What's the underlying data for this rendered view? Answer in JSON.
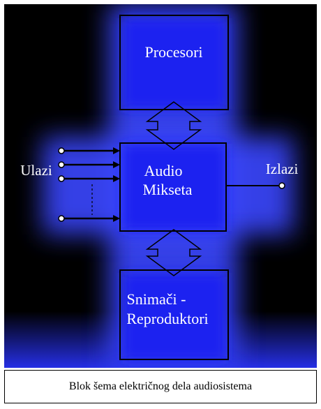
{
  "diagram": {
    "nodes": {
      "processors": {
        "label": "Procesori"
      },
      "mixer": {
        "label_line1": "Audio",
        "label_line2": "Mikseta"
      },
      "recorders": {
        "label_line1": "Snimači -",
        "label_line2": "Reproduktori"
      }
    },
    "inputs_label": "Ulazi",
    "outputs_label": "Izlazi",
    "colors": {
      "background": "#000000",
      "glow": "#3a46ff",
      "box_fill": "#1a22f0",
      "line": "#000000",
      "text": "#ffffff"
    },
    "edges": [
      {
        "from": "processors",
        "to": "mixer",
        "type": "bidirectional-arrow"
      },
      {
        "from": "mixer",
        "to": "recorders",
        "type": "bidirectional-arrow"
      },
      {
        "from": "inputs",
        "to": "mixer",
        "type": "input-lines"
      },
      {
        "from": "mixer",
        "to": "outputs",
        "type": "output-line"
      }
    ]
  },
  "caption": "Blok šema električnog dela audiosistema"
}
